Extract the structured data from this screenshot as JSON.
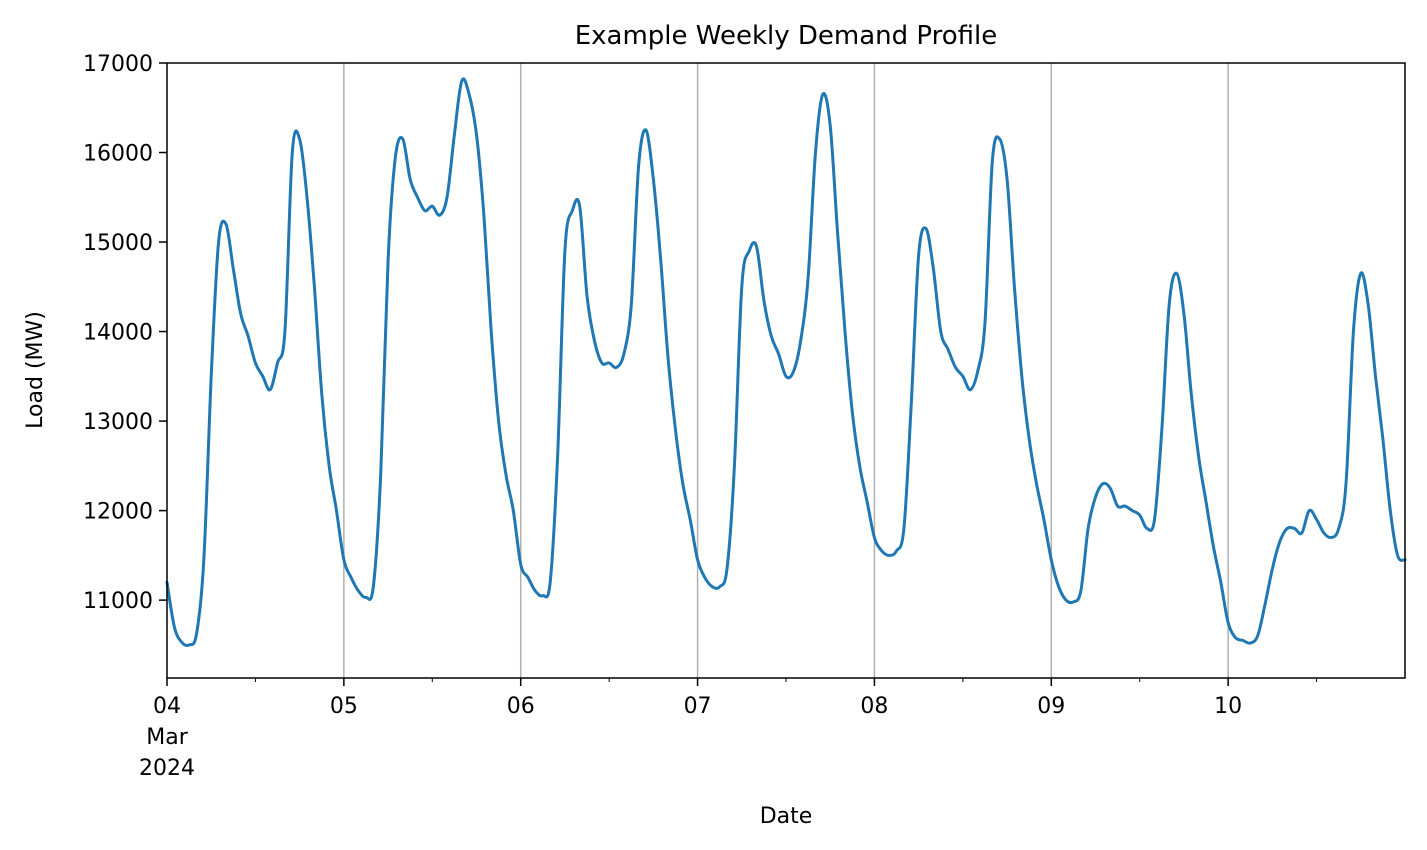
{
  "chart_data": {
    "type": "line",
    "title": "Example Weekly Demand Profile",
    "xlabel": "Date",
    "ylabel": "Load (MW)",
    "xlim": [
      "2024-03-04 00:00",
      "2024-03-11 00:00"
    ],
    "ylim": [
      10130,
      17000
    ],
    "grid": "x-major-only",
    "x_ticks": [
      {
        "date": "2024-03-04",
        "label": [
          "04",
          "Mar",
          "2024"
        ]
      },
      {
        "date": "2024-03-05",
        "label": [
          "05"
        ]
      },
      {
        "date": "2024-03-06",
        "label": [
          "06"
        ]
      },
      {
        "date": "2024-03-07",
        "label": [
          "07"
        ]
      },
      {
        "date": "2024-03-08",
        "label": [
          "08"
        ]
      },
      {
        "date": "2024-03-09",
        "label": [
          "09"
        ]
      },
      {
        "date": "2024-03-10",
        "label": [
          "10"
        ]
      }
    ],
    "y_ticks": [
      {
        "value": 11000,
        "label": "11000"
      },
      {
        "value": 12000,
        "label": "12000"
      },
      {
        "value": 13000,
        "label": "13000"
      },
      {
        "value": 14000,
        "label": "14000"
      },
      {
        "value": 15000,
        "label": "15000"
      },
      {
        "value": 16000,
        "label": "16000"
      },
      {
        "value": 17000,
        "label": "17000"
      }
    ],
    "series": [
      {
        "color": "#1f77b4",
        "x": [
          "2024-03-04 00:00",
          "2024-03-04 01:00",
          "2024-03-04 02:00",
          "2024-03-04 03:00",
          "2024-03-04 04:00",
          "2024-03-04 05:00",
          "2024-03-04 06:00",
          "2024-03-04 07:00",
          "2024-03-04 08:00",
          "2024-03-04 09:00",
          "2024-03-04 10:00",
          "2024-03-04 11:00",
          "2024-03-04 12:00",
          "2024-03-04 13:00",
          "2024-03-04 14:00",
          "2024-03-04 15:00",
          "2024-03-04 16:00",
          "2024-03-04 17:00",
          "2024-03-04 18:00",
          "2024-03-04 19:00",
          "2024-03-04 20:00",
          "2024-03-04 21:00",
          "2024-03-04 22:00",
          "2024-03-04 23:00",
          "2024-03-05 00:00",
          "2024-03-05 01:00",
          "2024-03-05 02:00",
          "2024-03-05 03:00",
          "2024-03-05 04:00",
          "2024-03-05 05:00",
          "2024-03-05 06:00",
          "2024-03-05 07:00",
          "2024-03-05 08:00",
          "2024-03-05 09:00",
          "2024-03-05 10:00",
          "2024-03-05 11:00",
          "2024-03-05 12:00",
          "2024-03-05 13:00",
          "2024-03-05 14:00",
          "2024-03-05 15:00",
          "2024-03-05 16:00",
          "2024-03-05 17:00",
          "2024-03-05 18:00",
          "2024-03-05 19:00",
          "2024-03-05 20:00",
          "2024-03-05 21:00",
          "2024-03-05 22:00",
          "2024-03-05 23:00",
          "2024-03-06 00:00",
          "2024-03-06 01:00",
          "2024-03-06 02:00",
          "2024-03-06 03:00",
          "2024-03-06 04:00",
          "2024-03-06 05:00",
          "2024-03-06 06:00",
          "2024-03-06 07:00",
          "2024-03-06 08:00",
          "2024-03-06 09:00",
          "2024-03-06 10:00",
          "2024-03-06 11:00",
          "2024-03-06 12:00",
          "2024-03-06 13:00",
          "2024-03-06 14:00",
          "2024-03-06 15:00",
          "2024-03-06 16:00",
          "2024-03-06 17:00",
          "2024-03-06 18:00",
          "2024-03-06 19:00",
          "2024-03-06 20:00",
          "2024-03-06 21:00",
          "2024-03-06 22:00",
          "2024-03-06 23:00",
          "2024-03-07 00:00",
          "2024-03-07 01:00",
          "2024-03-07 02:00",
          "2024-03-07 03:00",
          "2024-03-07 04:00",
          "2024-03-07 05:00",
          "2024-03-07 06:00",
          "2024-03-07 07:00",
          "2024-03-07 08:00",
          "2024-03-07 09:00",
          "2024-03-07 10:00",
          "2024-03-07 11:00",
          "2024-03-07 12:00",
          "2024-03-07 13:00",
          "2024-03-07 14:00",
          "2024-03-07 15:00",
          "2024-03-07 16:00",
          "2024-03-07 17:00",
          "2024-03-07 18:00",
          "2024-03-07 19:00",
          "2024-03-07 20:00",
          "2024-03-07 21:00",
          "2024-03-07 22:00",
          "2024-03-07 23:00",
          "2024-03-08 00:00",
          "2024-03-08 01:00",
          "2024-03-08 02:00",
          "2024-03-08 03:00",
          "2024-03-08 04:00",
          "2024-03-08 05:00",
          "2024-03-08 06:00",
          "2024-03-08 07:00",
          "2024-03-08 08:00",
          "2024-03-08 09:00",
          "2024-03-08 10:00",
          "2024-03-08 11:00",
          "2024-03-08 12:00",
          "2024-03-08 13:00",
          "2024-03-08 14:00",
          "2024-03-08 15:00",
          "2024-03-08 16:00",
          "2024-03-08 17:00",
          "2024-03-08 18:00",
          "2024-03-08 19:00",
          "2024-03-08 20:00",
          "2024-03-08 21:00",
          "2024-03-08 22:00",
          "2024-03-08 23:00",
          "2024-03-09 00:00",
          "2024-03-09 01:00",
          "2024-03-09 02:00",
          "2024-03-09 03:00",
          "2024-03-09 04:00",
          "2024-03-09 05:00",
          "2024-03-09 06:00",
          "2024-03-09 07:00",
          "2024-03-09 08:00",
          "2024-03-09 09:00",
          "2024-03-09 10:00",
          "2024-03-09 11:00",
          "2024-03-09 12:00",
          "2024-03-09 13:00",
          "2024-03-09 14:00",
          "2024-03-09 15:00",
          "2024-03-09 16:00",
          "2024-03-09 17:00",
          "2024-03-09 18:00",
          "2024-03-09 19:00",
          "2024-03-09 20:00",
          "2024-03-09 21:00",
          "2024-03-09 22:00",
          "2024-03-09 23:00",
          "2024-03-10 00:00",
          "2024-03-10 01:00",
          "2024-03-10 02:00",
          "2024-03-10 03:00",
          "2024-03-10 04:00",
          "2024-03-10 05:00",
          "2024-03-10 06:00",
          "2024-03-10 07:00",
          "2024-03-10 08:00",
          "2024-03-10 09:00",
          "2024-03-10 10:00",
          "2024-03-10 11:00",
          "2024-03-10 12:00",
          "2024-03-10 13:00",
          "2024-03-10 14:00",
          "2024-03-10 15:00",
          "2024-03-10 16:00",
          "2024-03-10 17:00",
          "2024-03-10 18:00",
          "2024-03-10 19:00",
          "2024-03-10 20:00",
          "2024-03-10 21:00",
          "2024-03-10 22:00",
          "2024-03-10 23:00",
          "2024-03-11 00:00"
        ],
        "y": [
          11200,
          10700,
          10530,
          10500,
          10620,
          11450,
          13500,
          15000,
          15200,
          14700,
          14200,
          13950,
          13650,
          13500,
          13350,
          13650,
          14000,
          16000,
          16150,
          15500,
          14500,
          13300,
          12500,
          12000,
          11450,
          11250,
          11100,
          11030,
          11150,
          12400,
          14800,
          15950,
          16150,
          15700,
          15500,
          15350,
          15400,
          15300,
          15500,
          16200,
          16800,
          16650,
          16200,
          15300,
          14000,
          13000,
          12400,
          12000,
          11400,
          11250,
          11100,
          11050,
          11200,
          12600,
          14900,
          15350,
          15400,
          14400,
          13900,
          13650,
          13650,
          13600,
          13750,
          14300,
          15850,
          16250,
          15700,
          14800,
          13700,
          12900,
          12300,
          11900,
          11450,
          11250,
          11150,
          11150,
          11350,
          12500,
          14500,
          14900,
          14950,
          14350,
          13950,
          13750,
          13500,
          13550,
          13900,
          14600,
          16000,
          16650,
          16300,
          15100,
          14000,
          13100,
          12500,
          12100,
          11700,
          11550,
          11500,
          11550,
          11800,
          13200,
          14850,
          15150,
          14700,
          14000,
          13800,
          13600,
          13500,
          13350,
          13550,
          14100,
          15900,
          16150,
          15700,
          14500,
          13500,
          12800,
          12300,
          11900,
          11450,
          11150,
          11000,
          10980,
          11100,
          11800,
          12150,
          12300,
          12250,
          12050,
          12050,
          12000,
          11950,
          11800,
          11900,
          12900,
          14300,
          14650,
          14200,
          13300,
          12600,
          12100,
          11600,
          11200,
          10750,
          10580,
          10550,
          10520,
          10600,
          10950,
          11350,
          11650,
          11800,
          11800,
          11750,
          12000,
          11900,
          11750,
          11700,
          11800,
          12300,
          14000,
          14650,
          14300,
          13500,
          12800,
          12000,
          11500,
          11450
        ]
      }
    ]
  }
}
